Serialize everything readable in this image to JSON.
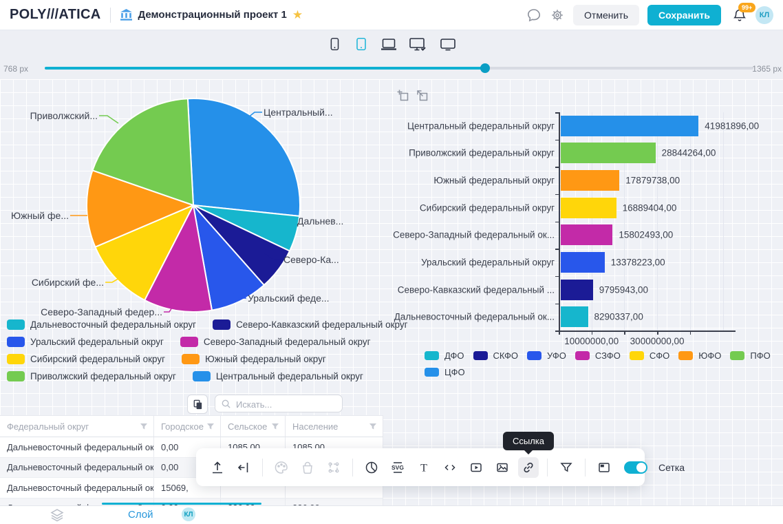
{
  "header": {
    "logo": "POLY///ATICA",
    "project_title": "Демонстрационный проект 1",
    "cancel_label": "Отменить",
    "save_label": "Сохранить",
    "notification_badge": "99+",
    "avatar_initials": "КЛ"
  },
  "slider": {
    "min_label": "768 px",
    "max_label": "1365 px"
  },
  "canvas_toolbar": {
    "tooltip": "Ссылка",
    "grid_toggle_label": "Сетка"
  },
  "table": {
    "search_placeholder": "Искать...",
    "columns": [
      "Федеральный округ",
      "Городское",
      "Сельское",
      "Население"
    ],
    "rows": [
      [
        "Дальневосточный федеральный округ",
        "0,00",
        "1085,00",
        "1085,00"
      ],
      [
        "Дальневосточный федеральный округ",
        "0,00",
        "",
        ""
      ],
      [
        "Дальневосточный федеральный округ",
        "15069,",
        "",
        ""
      ],
      [
        "Дальневосточный федеральный округ",
        "0,00",
        "226,00",
        "226,00"
      ]
    ]
  },
  "footer": {
    "layer_label": "Слой",
    "badge": "КЛ"
  },
  "chart_data": [
    {
      "type": "pie",
      "labels": [
        "Центральный федеральный округ",
        "Дальневосточный федеральный округ",
        "Северо-Кавказский федеральный округ",
        "Уральский федеральный округ",
        "Северо-Западный федеральный округ",
        "Сибирский федеральный округ",
        "Южный федеральный округ",
        "Приволжский федеральный округ"
      ],
      "callout_labels": [
        "Центральный...",
        "Дальнев...",
        "Северо-Ка...",
        "Уральский феде...",
        "Северо-Западный федер...",
        "Сибирский фе...",
        "Южный фе...",
        "Приволжский..."
      ],
      "values": [
        41981896,
        8290337,
        9795943,
        13378223,
        15802493,
        16889404,
        17879738,
        28844264
      ],
      "colors": [
        "#2590e9",
        "#16b6cd",
        "#1b1b96",
        "#2857eb",
        "#c32aa8",
        "#ffd60a",
        "#ff9814",
        "#74cb50"
      ],
      "legend": [
        {
          "label": "Дальневосточный федеральный округ",
          "color": "#16b6cd"
        },
        {
          "label": "Северо-Кавказский федеральный округ",
          "color": "#1b1b96"
        },
        {
          "label": "Уральский федеральный округ",
          "color": "#2857eb"
        },
        {
          "label": "Северо-Западный федеральный округ",
          "color": "#c32aa8"
        },
        {
          "label": "Сибирский федеральный округ",
          "color": "#ffd60a"
        },
        {
          "label": "Южный федеральный округ",
          "color": "#ff9814"
        },
        {
          "label": "Приволжский федеральный округ",
          "color": "#74cb50"
        },
        {
          "label": "Центральный федеральный округ",
          "color": "#2590e9"
        }
      ]
    },
    {
      "type": "bar",
      "orientation": "horizontal",
      "categories": [
        "Центральный федеральный округ",
        "Приволжский федеральный округ",
        "Южный федеральный округ",
        "Сибирский федеральный округ",
        "Северо-Западный федеральный ок...",
        "Уральский федеральный округ",
        "Северо-Кавказский федеральный ...",
        "Дальневосточный федеральный ок..."
      ],
      "values": [
        41981896,
        28844264,
        17879738,
        16889404,
        15802493,
        13378223,
        9795943,
        8290337
      ],
      "value_labels": [
        "41981896,00",
        "28844264,00",
        "17879738,00",
        "16889404,00",
        "15802493,00",
        "13378223,00",
        "9795943,00",
        "8290337,00"
      ],
      "colors": [
        "#2590e9",
        "#74cb50",
        "#ff9814",
        "#ffd60a",
        "#c32aa8",
        "#2857eb",
        "#1b1b96",
        "#16b6cd"
      ],
      "xticks": [
        {
          "value": 10000000,
          "label": "10000000,00"
        },
        {
          "value": 30000000,
          "label": "30000000,00"
        }
      ],
      "xlim": [
        0,
        52000000
      ],
      "legend": [
        {
          "label": "ДФО",
          "color": "#16b6cd"
        },
        {
          "label": "СКФО",
          "color": "#1b1b96"
        },
        {
          "label": "УФО",
          "color": "#2857eb"
        },
        {
          "label": "СЗФО",
          "color": "#c32aa8"
        },
        {
          "label": "СФО",
          "color": "#ffd60a"
        },
        {
          "label": "ЮФО",
          "color": "#ff9814"
        },
        {
          "label": "ПФО",
          "color": "#74cb50"
        },
        {
          "label": "ЦФО",
          "color": "#2590e9"
        }
      ]
    }
  ]
}
